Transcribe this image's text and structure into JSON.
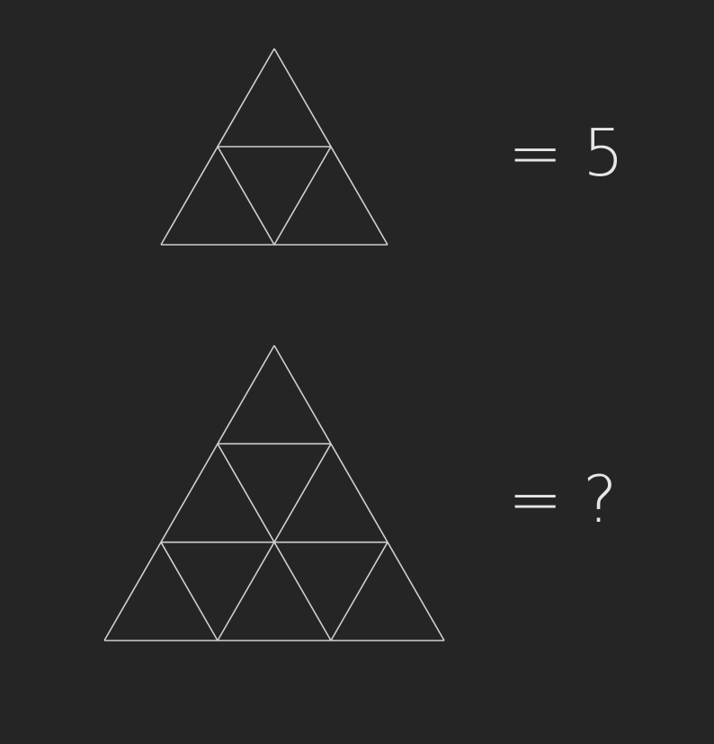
{
  "puzzle": {
    "line_color": "#cfcfcf",
    "background_color": "#252525",
    "rows": [
      {
        "subdivisions": 2,
        "equation": "= 5"
      },
      {
        "subdivisions": 3,
        "equation": "= ?"
      }
    ]
  }
}
